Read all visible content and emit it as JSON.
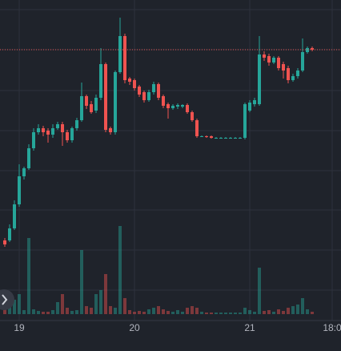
{
  "chart_data": {
    "type": "candlestick",
    "ylim": [
      0,
      400
    ],
    "open": [
      100,
      100,
      115,
      145,
      180,
      190,
      215,
      235,
      240,
      237,
      232,
      240,
      245,
      235,
      225,
      240,
      250,
      280,
      270,
      262,
      278,
      320,
      240,
      235,
      310,
      355,
      302,
      300,
      292,
      285,
      275,
      285,
      295,
      280,
      270,
      265,
      267,
      267,
      269,
      260,
      250,
      230,
      230,
      230,
      228,
      228,
      228,
      228,
      228,
      228,
      228,
      262,
      270,
      270,
      332,
      330,
      322,
      328,
      320,
      315,
      300,
      305,
      312,
      335,
      340
    ],
    "high": [
      103,
      120,
      150,
      195,
      192,
      220,
      240,
      245,
      243,
      240,
      245,
      248,
      248,
      238,
      242,
      253,
      297,
      282,
      274,
      282,
      340,
      322,
      242,
      312,
      378,
      358,
      304,
      302,
      294,
      287,
      288,
      298,
      297,
      282,
      272,
      270,
      271,
      270,
      271,
      262,
      252,
      231,
      231,
      231,
      229,
      229,
      229,
      229,
      229,
      229,
      272,
      275,
      278,
      355,
      336,
      333,
      330,
      330,
      323,
      318,
      308,
      315,
      352,
      342,
      342
    ],
    "low": [
      92,
      98,
      113,
      142,
      176,
      188,
      212,
      232,
      230,
      222,
      228,
      238,
      218,
      222,
      222,
      237,
      248,
      264,
      258,
      259,
      275,
      235,
      232,
      232,
      308,
      296,
      294,
      287,
      279,
      272,
      273,
      282,
      275,
      265,
      252,
      263,
      264,
      265,
      258,
      248,
      228,
      229,
      228,
      227,
      227,
      227,
      227,
      227,
      227,
      227,
      226,
      260,
      267,
      268,
      324,
      318,
      320,
      312,
      302,
      296,
      298,
      302,
      310,
      333,
      336
    ],
    "close": [
      95,
      115,
      145,
      180,
      190,
      215,
      235,
      240,
      235,
      232,
      240,
      245,
      235,
      225,
      240,
      250,
      280,
      268,
      260,
      278,
      320,
      238,
      235,
      310,
      355,
      300,
      298,
      290,
      282,
      275,
      285,
      295,
      278,
      268,
      265,
      268,
      269,
      269,
      260,
      250,
      230,
      230,
      229,
      228,
      228,
      228,
      228,
      228,
      228,
      228,
      270,
      272,
      275,
      332,
      328,
      322,
      328,
      315,
      312,
      300,
      305,
      312,
      335,
      340,
      338
    ],
    "volume": [
      8,
      10,
      18,
      25,
      5,
      95,
      6,
      4,
      3,
      3,
      5,
      15,
      25,
      8,
      4,
      5,
      80,
      10,
      8,
      25,
      30,
      50,
      10,
      8,
      110,
      20,
      5,
      3,
      4,
      3,
      6,
      8,
      10,
      6,
      4,
      3,
      5,
      3,
      8,
      10,
      8,
      3,
      2,
      2,
      2,
      2,
      2,
      2,
      2,
      2,
      8,
      5,
      3,
      58,
      4,
      5,
      3,
      6,
      4,
      8,
      10,
      12,
      20,
      6,
      3
    ],
    "volume_lim": [
      0,
      120
    ],
    "last_price": 338,
    "up_color": "#26a69a",
    "down_color": "#ef5350",
    "time_labels": [
      "19",
      "20",
      "21",
      "18:0"
    ]
  }
}
